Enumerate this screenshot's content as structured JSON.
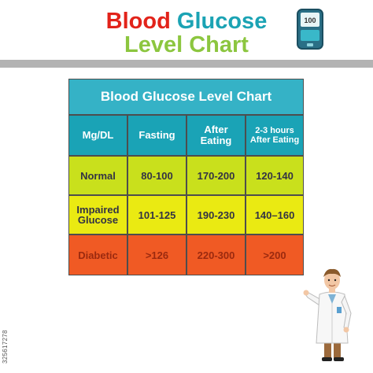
{
  "header": {
    "title_word1": "Blood",
    "title_word2": "Glucose",
    "title_line2": "Level Chart",
    "colors": {
      "red": "#e2231a",
      "teal": "#1ba3b4",
      "green": "#8cc63f"
    }
  },
  "meter": {
    "icon": "glucose-meter-icon",
    "reading": "100"
  },
  "table": {
    "title": "Blood Glucose Level  Chart",
    "columns": [
      "Mg/DL",
      "Fasting",
      "After Eating",
      "2-3 hours After Eating"
    ],
    "rows": [
      {
        "label": "Normal",
        "values": [
          "80-100",
          "170-200",
          "120-140"
        ],
        "color": "#c9e01c"
      },
      {
        "label": "Impaired Glucose",
        "values": [
          "101-125",
          "190-230",
          "140–160"
        ],
        "color": "#eaea12"
      },
      {
        "label": "Diabetic",
        "values": [
          ">126",
          "220-300",
          ">200"
        ],
        "color": "#f05a24"
      }
    ]
  },
  "stock_id": "325617278",
  "illustration": {
    "icon": "doctor-pointing-icon"
  }
}
